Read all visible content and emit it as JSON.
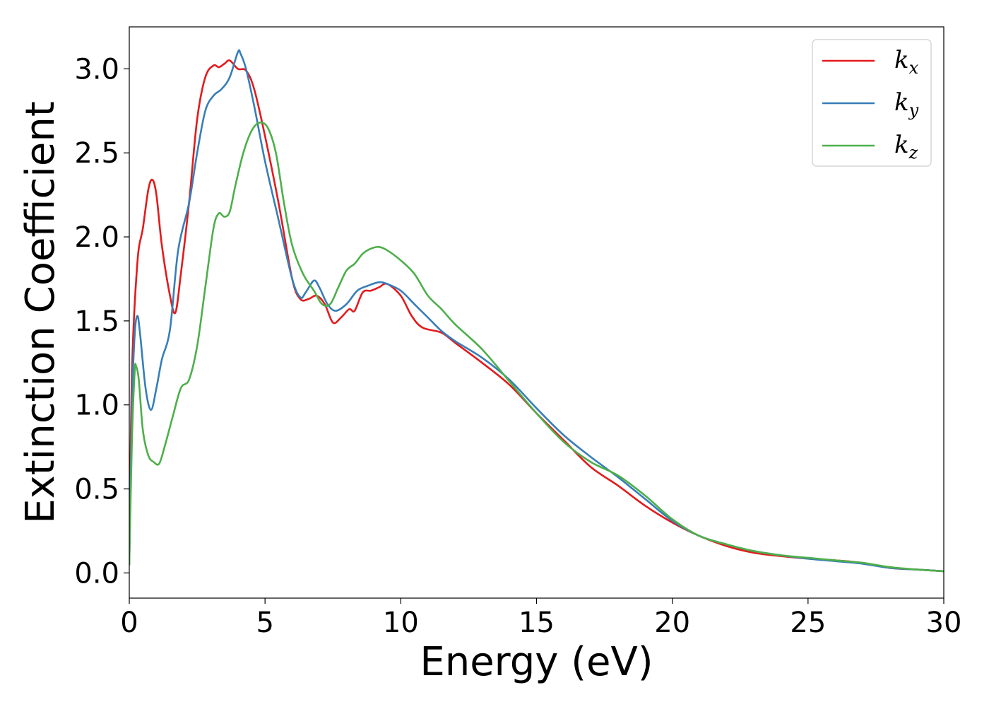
{
  "chart_data": {
    "type": "line",
    "xlabel": "Energy (eV)",
    "ylabel": "Extinction Coefficient",
    "xlim": [
      0,
      30
    ],
    "ylim": [
      -0.15,
      3.25
    ],
    "xticks": [
      0,
      5,
      10,
      15,
      20,
      25,
      30
    ],
    "xtick_labels": [
      "0",
      "5",
      "10",
      "15",
      "20",
      "25",
      "30"
    ],
    "yticks": [
      0.0,
      0.5,
      1.0,
      1.5,
      2.0,
      2.5,
      3.0
    ],
    "ytick_labels": [
      "0.0",
      "0.5",
      "1.0",
      "1.5",
      "2.0",
      "2.5",
      "3.0"
    ],
    "grid": false,
    "legend": {
      "placement": "top-right"
    },
    "series": [
      {
        "name": "k",
        "subscript": "x",
        "color": "#e41a1c",
        "x": [
          0,
          0.1,
          0.3,
          0.5,
          0.7,
          0.85,
          1.0,
          1.2,
          1.5,
          1.7,
          1.9,
          2.2,
          2.5,
          2.8,
          3.1,
          3.3,
          3.5,
          3.7,
          4.0,
          4.3,
          4.6,
          5.0,
          5.5,
          6.0,
          6.3,
          6.6,
          6.9,
          7.2,
          7.5,
          7.8,
          8.1,
          8.3,
          8.6,
          8.9,
          9.2,
          9.5,
          10.0,
          10.4,
          10.8,
          11.5,
          12.0,
          13.0,
          14.0,
          15.0,
          16.0,
          17.0,
          18.0,
          19.0,
          20.0,
          21.0,
          22.0,
          23.0,
          24.0,
          25.0,
          26.0,
          27.0,
          28.0,
          29.0,
          30.0
        ],
        "y": [
          0.05,
          1.2,
          1.85,
          2.05,
          2.28,
          2.34,
          2.25,
          1.95,
          1.65,
          1.55,
          1.78,
          2.2,
          2.7,
          2.95,
          3.02,
          3.01,
          3.03,
          3.05,
          3.0,
          2.99,
          2.88,
          2.6,
          2.2,
          1.75,
          1.63,
          1.63,
          1.65,
          1.6,
          1.49,
          1.52,
          1.57,
          1.56,
          1.67,
          1.68,
          1.7,
          1.72,
          1.65,
          1.53,
          1.46,
          1.43,
          1.37,
          1.25,
          1.12,
          0.95,
          0.79,
          0.63,
          0.52,
          0.4,
          0.3,
          0.22,
          0.16,
          0.12,
          0.1,
          0.085,
          0.075,
          0.06,
          0.03,
          0.02,
          0.01
        ]
      },
      {
        "name": "k",
        "subscript": "y",
        "color": "#377eb8",
        "x": [
          0,
          0.1,
          0.2,
          0.3,
          0.4,
          0.6,
          0.8,
          1.0,
          1.2,
          1.5,
          1.8,
          2.2,
          2.5,
          2.8,
          3.1,
          3.4,
          3.7,
          4.0,
          4.1,
          4.3,
          4.6,
          5.0,
          5.5,
          6.0,
          6.3,
          6.5,
          6.8,
          7.0,
          7.3,
          7.6,
          8.0,
          8.4,
          8.8,
          9.2,
          9.5,
          10.0,
          10.5,
          11.0,
          11.5,
          12.0,
          13.0,
          14.0,
          15.0,
          16.0,
          17.0,
          18.0,
          19.0,
          20.0,
          21.0,
          22.0,
          23.0,
          24.0,
          25.0,
          26.0,
          27.0,
          28.0,
          29.0,
          30.0
        ],
        "y": [
          0.05,
          1.0,
          1.42,
          1.53,
          1.42,
          1.1,
          0.97,
          1.1,
          1.27,
          1.45,
          1.92,
          2.2,
          2.5,
          2.75,
          2.84,
          2.88,
          2.95,
          3.1,
          3.09,
          3.0,
          2.78,
          2.45,
          2.1,
          1.75,
          1.64,
          1.67,
          1.74,
          1.7,
          1.6,
          1.56,
          1.6,
          1.68,
          1.71,
          1.73,
          1.72,
          1.68,
          1.6,
          1.52,
          1.44,
          1.38,
          1.28,
          1.15,
          0.98,
          0.82,
          0.69,
          0.57,
          0.44,
          0.31,
          0.22,
          0.17,
          0.13,
          0.105,
          0.085,
          0.07,
          0.055,
          0.03,
          0.02,
          0.01
        ]
      },
      {
        "name": "k",
        "subscript": "z",
        "color": "#4daf4a",
        "x": [
          0,
          0.1,
          0.2,
          0.25,
          0.35,
          0.5,
          0.7,
          0.9,
          1.1,
          1.3,
          1.6,
          1.9,
          2.2,
          2.5,
          2.8,
          3.1,
          3.3,
          3.5,
          3.7,
          3.9,
          4.2,
          4.5,
          4.8,
          5.1,
          5.4,
          5.7,
          6.0,
          6.4,
          6.8,
          7.1,
          7.4,
          7.7,
          8.0,
          8.3,
          8.6,
          8.9,
          9.2,
          9.5,
          10.0,
          10.5,
          11.0,
          11.5,
          12.0,
          13.0,
          14.0,
          15.0,
          16.0,
          17.0,
          18.0,
          19.0,
          20.0,
          21.0,
          22.0,
          23.0,
          24.0,
          25.0,
          26.0,
          27.0,
          28.0,
          29.0,
          30.0
        ],
        "y": [
          0.05,
          0.8,
          1.2,
          1.23,
          1.15,
          0.85,
          0.7,
          0.66,
          0.65,
          0.75,
          0.93,
          1.1,
          1.15,
          1.35,
          1.7,
          2.05,
          2.14,
          2.12,
          2.15,
          2.3,
          2.5,
          2.63,
          2.68,
          2.65,
          2.5,
          2.2,
          1.95,
          1.78,
          1.68,
          1.6,
          1.6,
          1.7,
          1.8,
          1.84,
          1.9,
          1.93,
          1.94,
          1.92,
          1.86,
          1.78,
          1.65,
          1.57,
          1.48,
          1.33,
          1.14,
          0.95,
          0.78,
          0.66,
          0.58,
          0.46,
          0.32,
          0.22,
          0.17,
          0.13,
          0.105,
          0.09,
          0.075,
          0.06,
          0.035,
          0.02,
          0.01
        ]
      }
    ]
  }
}
